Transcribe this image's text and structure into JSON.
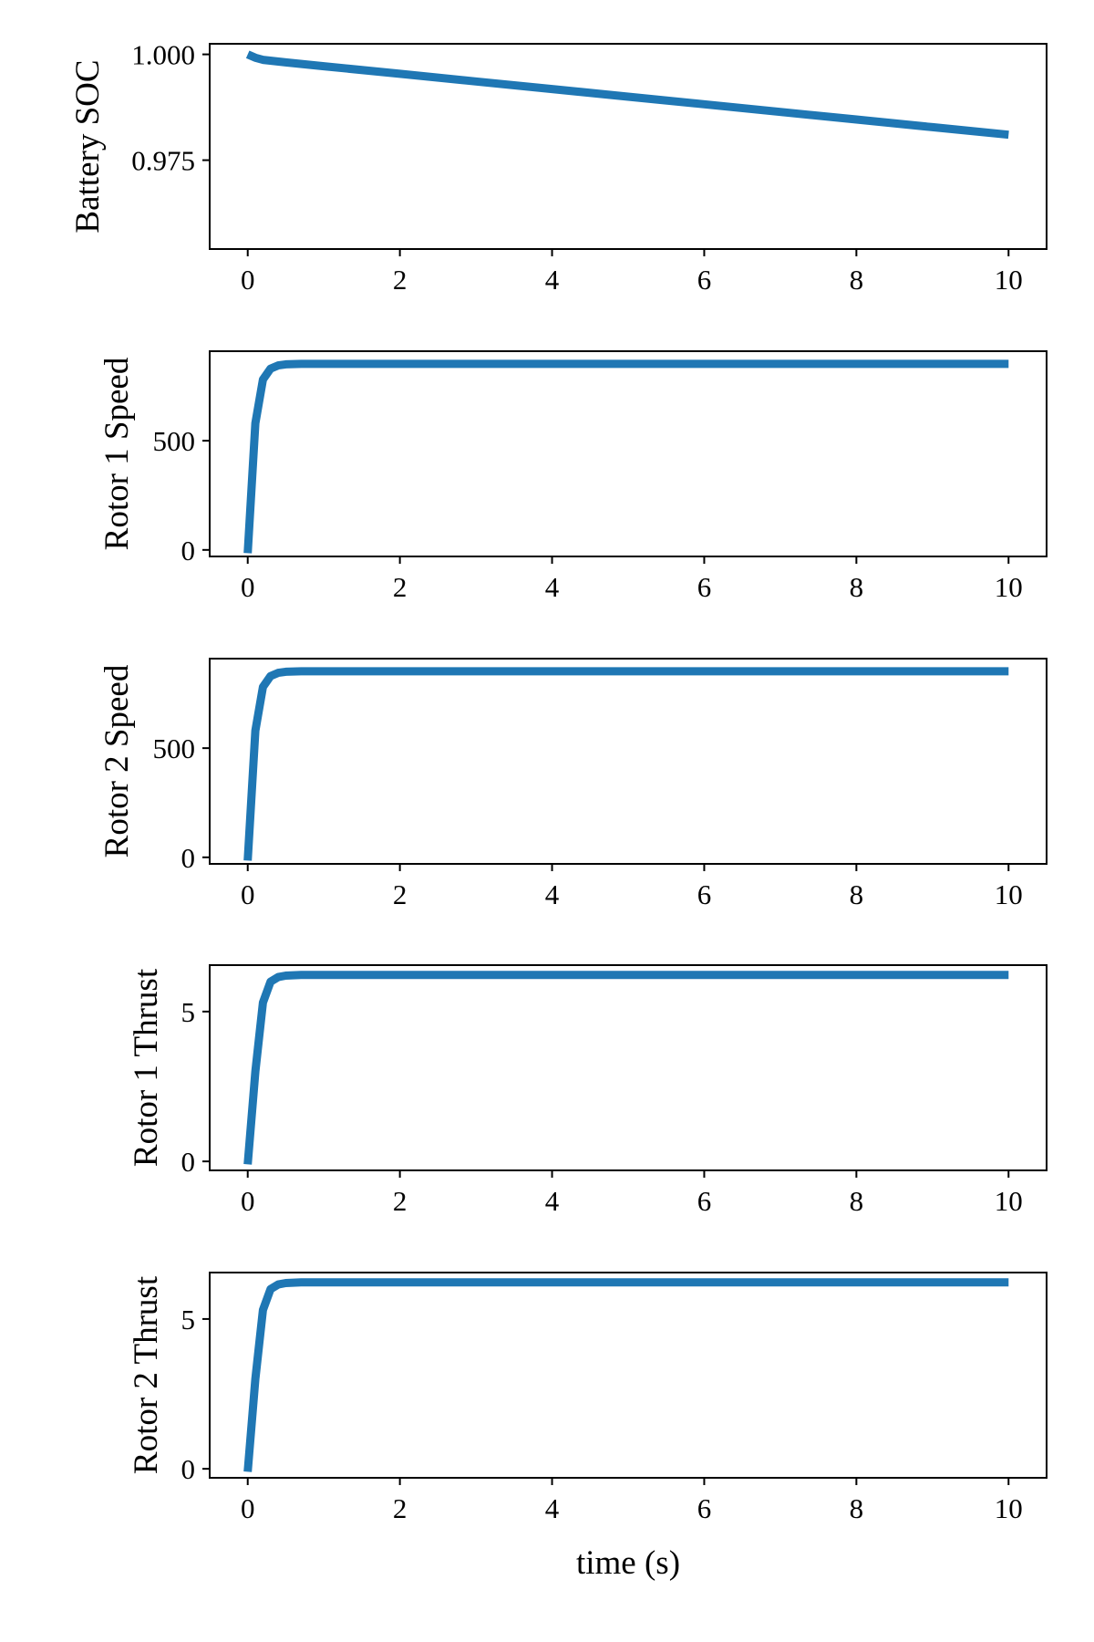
{
  "chart_data": [
    {
      "type": "line",
      "ylabel": "Battery SOC",
      "xlabel": "",
      "xlim": [
        -0.5,
        10.5
      ],
      "ylim": [
        0.954,
        1.0025
      ],
      "x_ticks": [
        0,
        2,
        4,
        6,
        8,
        10
      ],
      "x_tick_labels": [
        "0",
        "2",
        "4",
        "6",
        "8",
        "10"
      ],
      "y_ticks": [
        1.0,
        0.975
      ],
      "y_tick_labels": [
        "1.000",
        "0.975"
      ],
      "series": [
        {
          "color": "#1f77b4",
          "x": [
            0,
            0.1,
            0.2,
            0.5,
            1,
            2,
            3,
            4,
            5,
            6,
            7,
            8,
            9,
            10
          ],
          "y": [
            1.0,
            0.9992,
            0.9987,
            0.9981,
            0.9972,
            0.9954,
            0.9936,
            0.9918,
            0.99,
            0.9882,
            0.9864,
            0.9846,
            0.9828,
            0.981
          ]
        }
      ]
    },
    {
      "type": "line",
      "ylabel": "Rotor 1 Speed",
      "xlabel": "",
      "xlim": [
        -0.5,
        10.5
      ],
      "ylim": [
        -30,
        910
      ],
      "x_ticks": [
        0,
        2,
        4,
        6,
        8,
        10
      ],
      "x_tick_labels": [
        "0",
        "2",
        "4",
        "6",
        "8",
        "10"
      ],
      "y_ticks": [
        0,
        500
      ],
      "y_tick_labels": [
        "0",
        "500"
      ],
      "series": [
        {
          "color": "#1f77b4",
          "x": [
            0,
            0.1,
            0.2,
            0.3,
            0.4,
            0.5,
            0.7,
            1,
            10
          ],
          "y": [
            -15,
            580,
            780,
            830,
            845,
            850,
            852,
            852,
            852
          ]
        }
      ]
    },
    {
      "type": "line",
      "ylabel": "Rotor 2 Speed",
      "xlabel": "",
      "xlim": [
        -0.5,
        10.5
      ],
      "ylim": [
        -30,
        910
      ],
      "x_ticks": [
        0,
        2,
        4,
        6,
        8,
        10
      ],
      "x_tick_labels": [
        "0",
        "2",
        "4",
        "6",
        "8",
        "10"
      ],
      "y_ticks": [
        0,
        500
      ],
      "y_tick_labels": [
        "0",
        "500"
      ],
      "series": [
        {
          "color": "#1f77b4",
          "x": [
            0,
            0.1,
            0.2,
            0.3,
            0.4,
            0.5,
            0.7,
            1,
            10
          ],
          "y": [
            -15,
            580,
            780,
            830,
            845,
            850,
            852,
            852,
            852
          ]
        }
      ]
    },
    {
      "type": "line",
      "ylabel": "Rotor 1 Thrust",
      "xlabel": "",
      "xlim": [
        -0.5,
        10.5
      ],
      "ylim": [
        -0.3,
        6.55
      ],
      "x_ticks": [
        0,
        2,
        4,
        6,
        8,
        10
      ],
      "x_tick_labels": [
        "0",
        "2",
        "4",
        "6",
        "8",
        "10"
      ],
      "y_ticks": [
        0,
        5
      ],
      "y_tick_labels": [
        "0",
        "5"
      ],
      "series": [
        {
          "color": "#1f77b4",
          "x": [
            0,
            0.1,
            0.2,
            0.3,
            0.4,
            0.5,
            0.7,
            1,
            10
          ],
          "y": [
            -0.1,
            3.0,
            5.3,
            6.0,
            6.15,
            6.2,
            6.22,
            6.22,
            6.22
          ]
        }
      ]
    },
    {
      "type": "line",
      "ylabel": "Rotor 2 Thrust",
      "xlabel": "time (s)",
      "xlim": [
        -0.5,
        10.5
      ],
      "ylim": [
        -0.3,
        6.55
      ],
      "x_ticks": [
        0,
        2,
        4,
        6,
        8,
        10
      ],
      "x_tick_labels": [
        "0",
        "2",
        "4",
        "6",
        "8",
        "10"
      ],
      "y_ticks": [
        0,
        5
      ],
      "y_tick_labels": [
        "0",
        "5"
      ],
      "series": [
        {
          "color": "#1f77b4",
          "x": [
            0,
            0.1,
            0.2,
            0.3,
            0.4,
            0.5,
            0.7,
            1,
            10
          ],
          "y": [
            -0.1,
            3.0,
            5.3,
            6.0,
            6.15,
            6.2,
            6.22,
            6.22,
            6.22
          ]
        }
      ]
    }
  ]
}
